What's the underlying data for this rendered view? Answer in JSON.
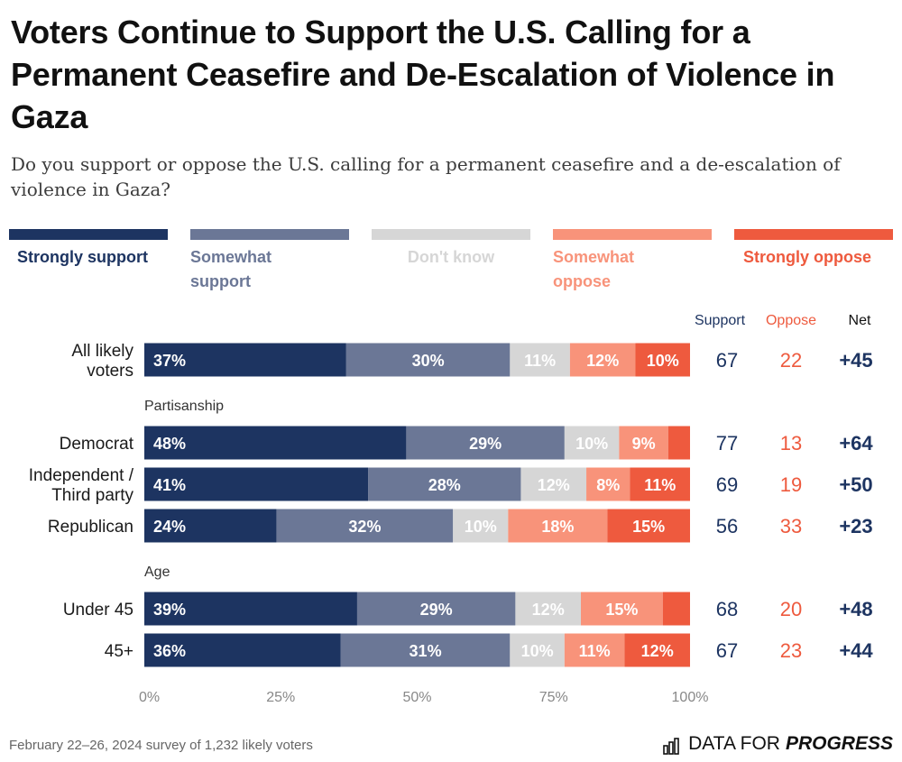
{
  "title": "Voters Continue to Support the U.S. Calling for a Permanent Ceasefire and De-Escalation of Violence in Gaza",
  "subtitle": "Do you support or oppose the U.S. calling for a permanent ceasefire and a de-escalation of violence in Gaza?",
  "footer": {
    "note": "February 22–26, 2024 survey of 1,232 likely voters",
    "brand_prefix": "DATA FOR",
    "brand_strong": "PROGRESS",
    "brand_icon": "bar-chart-icon"
  },
  "colors": {
    "strongly_support": "#1d3461",
    "somewhat_support": "#6b7796",
    "dont_know": "#d6d6d6",
    "somewhat_oppose": "#f8937a",
    "strongly_oppose": "#ee5a3e"
  },
  "chart_data": {
    "type": "bar",
    "orientation": "horizontal-stacked",
    "title": "Voters Continue to Support the U.S. Calling for a Permanent Ceasefire and De-Escalation of Violence in Gaza",
    "subtitle": "Do you support or oppose the U.S. calling for a permanent ceasefire and a de-escalation of violence in Gaza?",
    "legend": {
      "placement": "top"
    },
    "xlim": [
      0,
      100
    ],
    "xticks": [
      "0%",
      "25%",
      "50%",
      "75%",
      "100%"
    ],
    "series": [
      {
        "key": "strongly_support",
        "name": "Strongly support",
        "color": "#1d3461"
      },
      {
        "key": "somewhat_support",
        "name": "Somewhat support",
        "color": "#6b7796"
      },
      {
        "key": "dont_know",
        "name": "Don't know",
        "color": "#d6d6d6"
      },
      {
        "key": "somewhat_oppose",
        "name": "Somewhat oppose",
        "color": "#f8937a"
      },
      {
        "key": "strongly_oppose",
        "name": "Strongly oppose",
        "color": "#ee5a3e"
      }
    ],
    "summary_headers": {
      "support": "Support",
      "oppose": "Oppose",
      "net": "Net"
    },
    "groups": [
      {
        "name": "",
        "rows": [
          {
            "label": "All likely voters",
            "values": [
              37,
              30,
              11,
              12,
              10
            ],
            "labels": [
              "37%",
              "30%",
              "11%",
              "12%",
              "10%"
            ],
            "support": "67",
            "oppose": "22",
            "net": "+45"
          }
        ]
      },
      {
        "name": "Partisanship",
        "rows": [
          {
            "label": "Democrat",
            "values": [
              48,
              29,
              10,
              9,
              4
            ],
            "labels": [
              "48%",
              "29%",
              "10%",
              "9%",
              ""
            ],
            "support": "77",
            "oppose": "13",
            "net": "+64"
          },
          {
            "label": "Independent / Third party",
            "values": [
              41,
              28,
              12,
              8,
              11
            ],
            "labels": [
              "41%",
              "28%",
              "12%",
              "8%",
              "11%"
            ],
            "support": "69",
            "oppose": "19",
            "net": "+50"
          },
          {
            "label": "Republican",
            "values": [
              24,
              32,
              10,
              18,
              15
            ],
            "labels": [
              "24%",
              "32%",
              "10%",
              "18%",
              "15%"
            ],
            "support": "56",
            "oppose": "33",
            "net": "+23"
          }
        ]
      },
      {
        "name": "Age",
        "rows": [
          {
            "label": "Under 45",
            "values": [
              39,
              29,
              12,
              15,
              5
            ],
            "labels": [
              "39%",
              "29%",
              "12%",
              "15%",
              ""
            ],
            "support": "68",
            "oppose": "20",
            "net": "+48"
          },
          {
            "label": "45+",
            "values": [
              36,
              31,
              10,
              11,
              12
            ],
            "labels": [
              "36%",
              "31%",
              "10%",
              "11%",
              "12%"
            ],
            "support": "67",
            "oppose": "23",
            "net": "+44"
          }
        ]
      }
    ]
  }
}
